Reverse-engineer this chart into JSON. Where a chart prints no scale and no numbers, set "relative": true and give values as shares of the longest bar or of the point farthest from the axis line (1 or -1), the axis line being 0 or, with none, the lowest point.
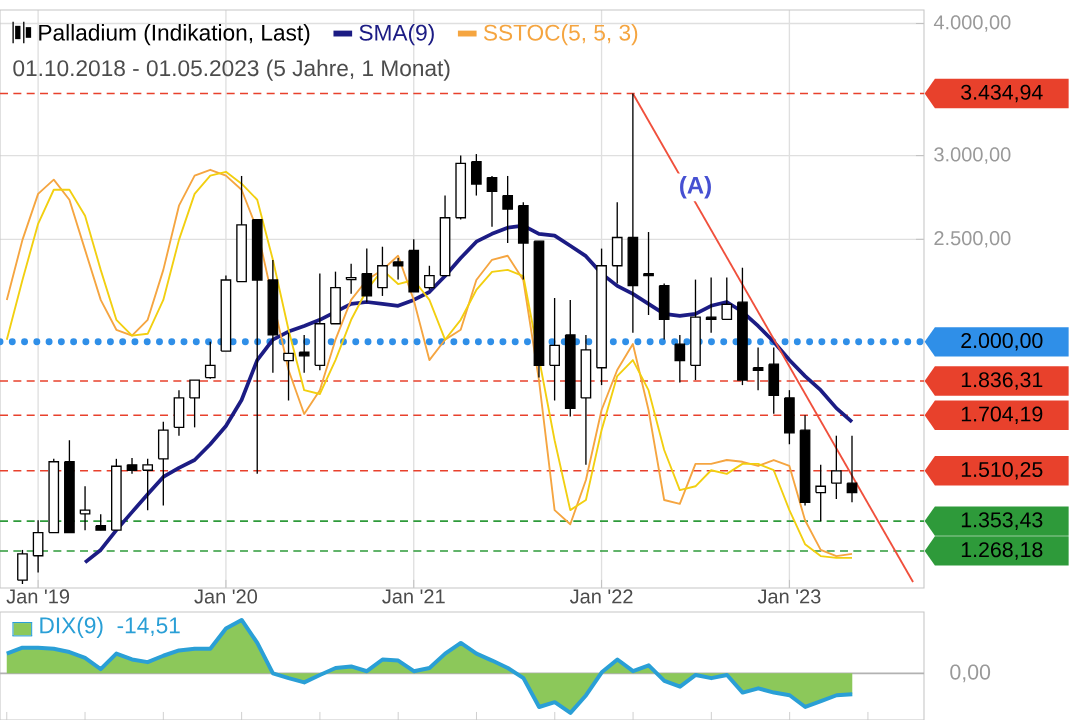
{
  "chart_data": [
    {
      "type": "candlestick",
      "subtitle": "01.10.2018 - 01.05.2023   (5 Jahre, 1 Monat)",
      "log": true,
      "grid": true,
      "legend": "top left",
      "marker": "none",
      "x": [
        "2018-11",
        "2018-12",
        "2019-01",
        "2019-02",
        "2019-03",
        "2019-04",
        "2019-05",
        "2019-06",
        "2019-07",
        "2019-08",
        "2019-09",
        "2019-10",
        "2019-11",
        "2019-12",
        "2020-01",
        "2020-02",
        "2020-03",
        "2020-04",
        "2020-05",
        "2020-06",
        "2020-07",
        "2020-08",
        "2020-09",
        "2020-10",
        "2020-11",
        "2020-12",
        "2021-01",
        "2021-02",
        "2021-03",
        "2021-04",
        "2021-05",
        "2021-06",
        "2021-07",
        "2021-08",
        "2021-09",
        "2021-10",
        "2021-11",
        "2021-12",
        "2022-01",
        "2022-02",
        "2022-03",
        "2022-04",
        "2022-05",
        "2022-06",
        "2022-07",
        "2022-08",
        "2022-09",
        "2022-10",
        "2022-11",
        "2022-12",
        "2023-01",
        "2023-02",
        "2023-03",
        "2023-04",
        "2023-05"
      ],
      "xlim": [
        "2018-10-18",
        "2023-09-19"
      ],
      "xticks": [
        {
          "value": "2019-01",
          "label": "Jan '19"
        },
        {
          "value": "2020-01",
          "label": "Jan '20"
        },
        {
          "value": "2021-01",
          "label": "Jan '21"
        },
        {
          "value": "2022-01",
          "label": "Jan '22"
        },
        {
          "value": "2023-01",
          "label": "Jan '23"
        }
      ],
      "ylim": [
        1170,
        4120
      ],
      "yticks": [
        {
          "value": 2500,
          "label": "2.500,00"
        },
        {
          "value": 3000,
          "label": "3.000,00"
        },
        {
          "value": 4000,
          "label": "4.000,00"
        }
      ],
      "series": [
        {
          "name": "Palladium (Indikation, Last)",
          "type": "candlestick",
          "color": "#000000",
          "x": [
            "2018-12",
            "2019-01",
            "2019-02",
            "2019-03",
            "2019-04",
            "2019-05",
            "2019-06",
            "2019-07",
            "2019-08",
            "2019-09",
            "2019-10",
            "2019-11",
            "2019-12",
            "2020-01",
            "2020-02",
            "2020-03",
            "2020-04",
            "2020-05",
            "2020-06",
            "2020-07",
            "2020-08",
            "2020-09",
            "2020-10",
            "2020-11",
            "2020-12",
            "2021-01",
            "2021-02",
            "2021-03",
            "2021-04",
            "2021-05",
            "2021-06",
            "2021-07",
            "2021-08",
            "2021-09",
            "2021-10",
            "2021-11",
            "2021-12",
            "2022-01",
            "2022-02",
            "2022-03",
            "2022-04",
            "2022-05",
            "2022-06",
            "2022-07",
            "2022-08",
            "2022-09",
            "2022-10",
            "2022-11",
            "2022-12",
            "2023-01",
            "2023-02",
            "2023-03",
            "2023-04",
            "2023-05"
          ],
          "ohlc": [
            [
              1190,
              1271,
              1180,
              1260
            ],
            [
              1255,
              1356,
              1210,
              1320
            ],
            [
              1320,
              1550,
              1320,
              1540
            ],
            [
              1540,
              1614,
              1320,
              1320
            ],
            [
              1375,
              1460,
              1327,
              1386
            ],
            [
              1340,
              1374,
              1327,
              1327
            ],
            [
              1327,
              1550,
              1327,
              1525
            ],
            [
              1530,
              1553,
              1500,
              1512
            ],
            [
              1512,
              1550,
              1386,
              1530
            ],
            [
              1550,
              1680,
              1400,
              1650
            ],
            [
              1660,
              1800,
              1630,
              1770
            ],
            [
              1770,
              1840,
              1660,
              1840
            ],
            [
              1850,
              2000,
              1845,
              1900
            ],
            [
              1960,
              2310,
              1960,
              2288
            ],
            [
              2280,
              2870,
              2280,
              2580
            ],
            [
              2609,
              2609,
              1500,
              2288
            ],
            [
              2288,
              2390,
              1870,
              2030
            ],
            [
              1920,
              2040,
              1760,
              1950
            ],
            [
              1955,
              2030,
              1870,
              1940
            ],
            [
              1900,
              2320,
              1880,
              2080
            ],
            [
              2080,
              2330,
              2080,
              2250
            ],
            [
              2290,
              2370,
              2220,
              2300
            ],
            [
              2320,
              2450,
              2180,
              2210
            ],
            [
              2250,
              2460,
              2210,
              2360
            ],
            [
              2380,
              2400,
              2290,
              2360
            ],
            [
              2440,
              2500,
              2230,
              2230
            ],
            [
              2250,
              2360,
              2240,
              2310
            ],
            [
              2310,
              2750,
              2310,
              2620
            ],
            [
              2620,
              3000,
              2610,
              2950
            ],
            [
              2960,
              3010,
              2750,
              2820
            ],
            [
              2860,
              2870,
              2570,
              2775
            ],
            [
              2750,
              2870,
              2480,
              2670
            ],
            [
              2690,
              2710,
              2290,
              2480
            ],
            [
              2490,
              2490,
              1850,
              1900
            ],
            [
              1900,
              2200,
              1760,
              1985
            ],
            [
              2030,
              2190,
              1700,
              1730
            ],
            [
              1770,
              2030,
              1530,
              1965
            ],
            [
              1890,
              2450,
              1820,
              2360
            ],
            [
              2360,
              2710,
              2270,
              2510
            ],
            [
              2510,
              3435,
              2040,
              2260
            ],
            [
              2320,
              2540,
              2120,
              2310
            ],
            [
              2260,
              2270,
              2010,
              2100
            ],
            [
              1990,
              2030,
              1830,
              1920
            ],
            [
              1900,
              2290,
              1840,
              2110
            ],
            [
              2110,
              2300,
              2040,
              2100
            ],
            [
              2100,
              2300,
              2100,
              2170
            ],
            [
              2180,
              2350,
              1820,
              1840
            ],
            [
              1890,
              1975,
              1800,
              1880
            ],
            [
              1905,
              1975,
              1710,
              1780
            ],
            [
              1770,
              1800,
              1600,
              1640
            ],
            [
              1650,
              1704,
              1400,
              1410
            ],
            [
              1440,
              1530,
              1353,
              1460
            ],
            [
              1470,
              1630,
              1420,
              1510
            ],
            [
              1470,
              1630,
              1410,
              1440
            ]
          ]
        },
        {
          "name": "SMA(9)",
          "type": "line",
          "color": "#1c1c84",
          "x": [
            "2019-04",
            "2019-05",
            "2019-06",
            "2019-07",
            "2019-08",
            "2019-09",
            "2019-10",
            "2019-11",
            "2019-12",
            "2020-01",
            "2020-02",
            "2020-03",
            "2020-04",
            "2020-05",
            "2020-06",
            "2020-07",
            "2020-08",
            "2020-09",
            "2020-10",
            "2020-11",
            "2020-12",
            "2021-01",
            "2021-02",
            "2021-03",
            "2021-04",
            "2021-05",
            "2021-06",
            "2021-07",
            "2021-08",
            "2021-09",
            "2021-10",
            "2021-11",
            "2021-12",
            "2022-01",
            "2022-02",
            "2022-03",
            "2022-04",
            "2022-05",
            "2022-06",
            "2022-07",
            "2022-08",
            "2022-09",
            "2022-10",
            "2022-11",
            "2022-12",
            "2023-01",
            "2023-02",
            "2023-03",
            "2023-04",
            "2023-05"
          ],
          "values": [
            1237,
            1271,
            1327,
            1380,
            1435,
            1490,
            1520,
            1546,
            1600,
            1665,
            1762,
            1922,
            2009,
            2045,
            2070,
            2098,
            2135,
            2172,
            2181,
            2172,
            2163,
            2191,
            2229,
            2308,
            2400,
            2487,
            2530,
            2564,
            2576,
            2530,
            2520,
            2465,
            2410,
            2320,
            2259,
            2220,
            2172,
            2125,
            2116,
            2125,
            2163,
            2181,
            2135,
            2070,
            2000,
            1922,
            1856,
            1800,
            1731,
            1680
          ]
        },
        {
          "name": "SSTOC(5, 5, 3)",
          "type": "line",
          "color": "#f5a540",
          "values": [
            2191,
            2497,
            2760,
            2847,
            2725,
            2443,
            2191,
            2053,
            2027,
            2098,
            2339,
            2690,
            2872,
            2909,
            2872,
            2785,
            2553,
            2191,
            1881,
            1709,
            1800,
            2009,
            2191,
            2288,
            2339,
            2412,
            2191,
            1922,
            2009,
            2053,
            2288,
            2391,
            2412,
            2288,
            1840,
            1386,
            1344,
            1480,
            1724,
            1881,
            1991,
            1724,
            1417,
            1405,
            1533,
            1533,
            1546,
            1540,
            1526,
            1546,
            1526,
            1356,
            1271,
            1254,
            1260
          ]
        },
        {
          "type": "line",
          "color": "#f2cf10",
          "values": [
            2009,
            2288,
            2586,
            2785,
            2785,
            2632,
            2339,
            2098,
            2027,
            2035,
            2191,
            2497,
            2760,
            2872,
            2896,
            2822,
            2725,
            2391,
            2053,
            1800,
            1785,
            1922,
            2098,
            2239,
            2339,
            2268,
            2288,
            2191,
            2009,
            2098,
            2239,
            2329,
            2339,
            2308,
            null,
            1614,
            1386,
            1417,
            1650,
            1856,
            1922,
            1800,
            1580,
            1448,
            1460,
            1512,
            1500,
            1533,
            1533,
            1512,
            1386,
            1287,
            1254,
            1249,
            1249
          ]
        },
        {
          "type": "line",
          "color": "#f0503c",
          "x": [
            "2022-03",
            "2023-08-28"
          ],
          "values": [
            3434.94,
            1185
          ]
        }
      ],
      "ref_lines": [
        {
          "axis": "y",
          "value": 3434.94,
          "label": "3.434,94",
          "color": "#e8412c",
          "line_style": "dashed"
        },
        {
          "axis": "y",
          "value": 2000,
          "label": "2.000,00",
          "color": "#2f8fe8",
          "line_style": "dotted"
        },
        {
          "axis": "y",
          "value": 1836.31,
          "label": "1.836,31",
          "color": "#e8412c",
          "line_style": "dashed"
        },
        {
          "axis": "y",
          "value": 1704.19,
          "label": "1.704,19",
          "color": "#e8412c",
          "line_style": "dashed"
        },
        {
          "axis": "y",
          "value": 1510.25,
          "label": "1.510,25",
          "color": "#e8412c",
          "line_style": "dashed"
        },
        {
          "axis": "y",
          "value": 1353.43,
          "label": "1.353,43",
          "color": "#2e9a3a",
          "line_style": "dashed"
        },
        {
          "axis": "y",
          "value": 1268.18,
          "label": "1.268,18",
          "color": "#2e9a3a",
          "line_style": "dashed"
        }
      ],
      "annotations": [
        {
          "text": "(A)",
          "x": "2022-07",
          "y": 2800
        }
      ]
    },
    {
      "type": "area",
      "relative": true,
      "legend": "top left",
      "categories": [
        null,
        null,
        null,
        null,
        null,
        null,
        null,
        null,
        null,
        null,
        null,
        null,
        null,
        null,
        null,
        null,
        null,
        null,
        null,
        null,
        null,
        null,
        null,
        null,
        null,
        null,
        null,
        null,
        null,
        null,
        null,
        null,
        null,
        null,
        null,
        null,
        null,
        null,
        null,
        null,
        null,
        null,
        null,
        null,
        null,
        null,
        null,
        null,
        null,
        null,
        null,
        null,
        null,
        null,
        null
      ],
      "series": [
        {
          "name": "DIX(9)",
          "color": "#8cc85a",
          "values": [
            0.37,
            0.48,
            0.48,
            0.46,
            0.4,
            0.29,
            0.08,
            0.37,
            0.26,
            0.21,
            0.33,
            0.43,
            0.46,
            0.46,
            0.84,
            1,
            0.57,
            0,
            -0.09,
            -0.17,
            -0.03,
            0.1,
            0.13,
            0.04,
            0.26,
            0.24,
            0.04,
            0.1,
            0.37,
            0.57,
            0.37,
            0.24,
            0.1,
            -0.09,
            -0.63,
            -0.54,
            -0.74,
            -0.41,
            0.02,
            0.26,
            0.04,
            0.15,
            -0.14,
            -0.25,
            -0.03,
            -0.09,
            -0.03,
            -0.36,
            -0.28,
            -0.36,
            -0.41,
            -0.63,
            -0.52,
            -0.41,
            -0.39
          ]
        }
      ],
      "ref_lines": [
        {
          "axis": "y",
          "value": 0,
          "label": "0,00"
        }
      ],
      "annotations": [
        "-14,51"
      ]
    }
  ]
}
